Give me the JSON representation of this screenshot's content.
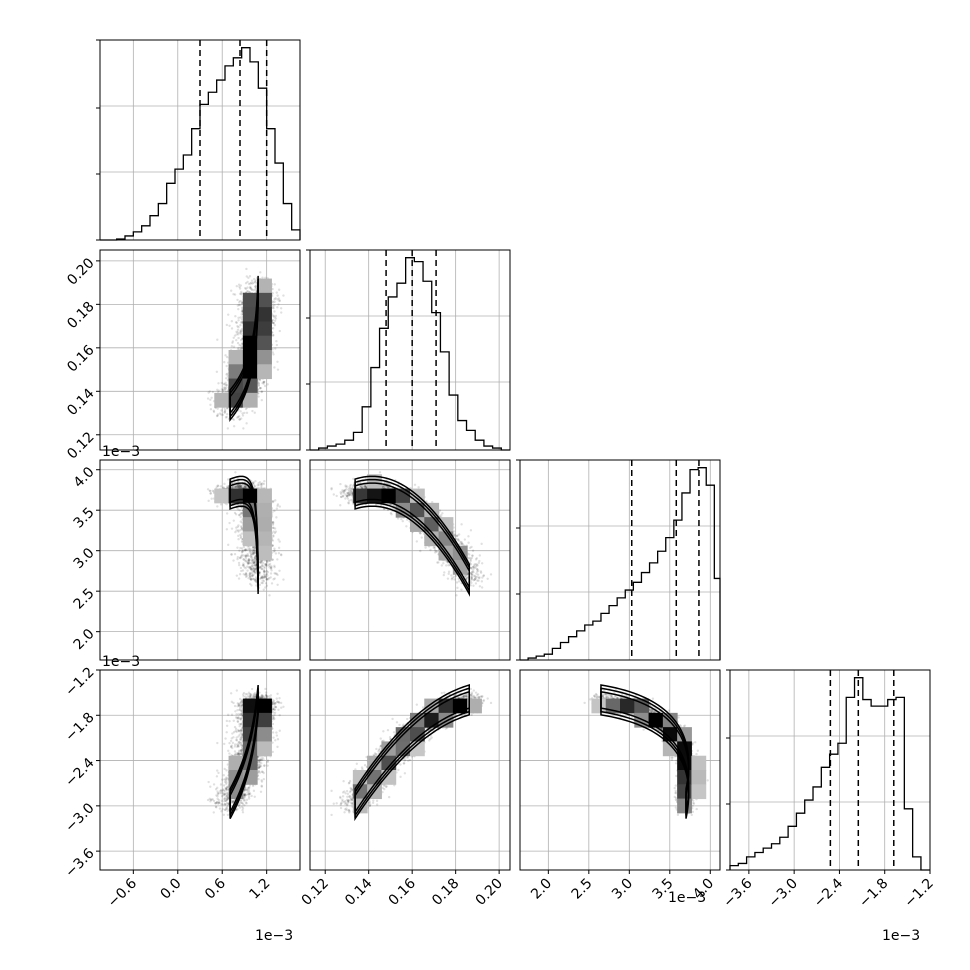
{
  "chart_data": {
    "type": "corner",
    "grid": true,
    "parameters": [
      {
        "range": [
          -1.05,
          1.65
        ],
        "ticks": [
          -0.6,
          0.0,
          0.6,
          1.2
        ],
        "tick_labels": [
          "−0.6",
          "0.0",
          "0.6",
          "1.2"
        ],
        "offset_text": "1e−3",
        "quantiles": [
          0.3,
          0.84,
          1.2
        ],
        "histogram": {
          "bin_edges": [
            -1.05,
            -0.9375,
            -0.825,
            -0.7125,
            -0.6,
            -0.4875,
            -0.375,
            -0.2625,
            -0.15,
            -0.0375,
            0.075,
            0.1875,
            0.3,
            0.4125,
            0.525,
            0.6375,
            0.75,
            0.8625,
            0.975,
            1.0875,
            1.2,
            1.3125,
            1.425,
            1.5375,
            1.65
          ],
          "counts": [
            0,
            0,
            0.5,
            2,
            4,
            7,
            12,
            18,
            28,
            35,
            42,
            55,
            67,
            73,
            79,
            86,
            90,
            95,
            88,
            75,
            55,
            38,
            18,
            5
          ]
        }
      },
      {
        "range": [
          0.113,
          0.205
        ],
        "ticks": [
          0.12,
          0.14,
          0.16,
          0.18,
          0.2
        ],
        "tick_labels": [
          "0.12",
          "0.14",
          "0.16",
          "0.18",
          "0.20"
        ],
        "quantiles": [
          0.148,
          0.16,
          0.171
        ],
        "histogram": {
          "bin_edges": [
            0.113,
            0.117,
            0.121,
            0.125,
            0.129,
            0.133,
            0.137,
            0.141,
            0.145,
            0.149,
            0.153,
            0.157,
            0.161,
            0.165,
            0.169,
            0.173,
            0.177,
            0.181,
            0.185,
            0.189,
            0.193,
            0.197,
            0.201,
            0.205
          ],
          "counts": [
            0,
            1,
            2,
            3,
            5,
            9,
            22,
            42,
            62,
            78,
            85,
            98,
            96,
            86,
            70,
            50,
            28,
            15,
            10,
            5,
            2,
            1,
            0
          ]
        }
      },
      {
        "range": [
          1.65,
          4.12
        ],
        "ticks": [
          2.0,
          2.5,
          3.0,
          3.5,
          4.0
        ],
        "tick_labels": [
          "2.0",
          "2.5",
          "3.0",
          "3.5",
          "4.0"
        ],
        "offset_text": "1e−3",
        "quantiles": [
          3.03,
          3.58,
          3.86
        ],
        "histogram": {
          "bin_edges": [
            1.65,
            1.75,
            1.85,
            1.95,
            2.05,
            2.15,
            2.25,
            2.35,
            2.45,
            2.55,
            2.65,
            2.75,
            2.85,
            2.95,
            3.05,
            3.15,
            3.25,
            3.35,
            3.45,
            3.55,
            3.65,
            3.75,
            3.85,
            3.95,
            4.05,
            4.12
          ],
          "counts": [
            0,
            1,
            2,
            3,
            6,
            9,
            12,
            15,
            18,
            20,
            24,
            28,
            32,
            36,
            40,
            45,
            50,
            56,
            63,
            72,
            86,
            98,
            99,
            90,
            42
          ]
        }
      },
      {
        "range": [
          -3.85,
          -1.2
        ],
        "ticks": [
          -3.6,
          -3.0,
          -2.4,
          -1.8,
          -1.2
        ],
        "tick_labels": [
          "−3.6",
          "−3.0",
          "−2.4",
          "−1.8",
          "−1.2"
        ],
        "offset_text": "1e−3",
        "quantiles": [
          -2.52,
          -2.15,
          -1.68
        ],
        "histogram": {
          "bin_edges": [
            -3.85,
            -3.74,
            -3.63,
            -3.52,
            -3.41,
            -3.3,
            -3.19,
            -3.08,
            -2.97,
            -2.86,
            -2.75,
            -2.64,
            -2.53,
            -2.42,
            -2.31,
            -2.2,
            -2.09,
            -1.98,
            -1.87,
            -1.76,
            -1.65,
            -1.54,
            -1.43,
            -1.32,
            -1.2
          ],
          "counts": [
            2,
            3,
            6,
            8,
            10,
            12,
            15,
            20,
            26,
            32,
            38,
            47,
            53,
            58,
            79,
            88,
            78,
            75,
            75,
            78,
            79,
            28,
            6,
            0
          ]
        }
      }
    ],
    "y_offset_texts": [
      "1e−3",
      "1e−3"
    ]
  }
}
